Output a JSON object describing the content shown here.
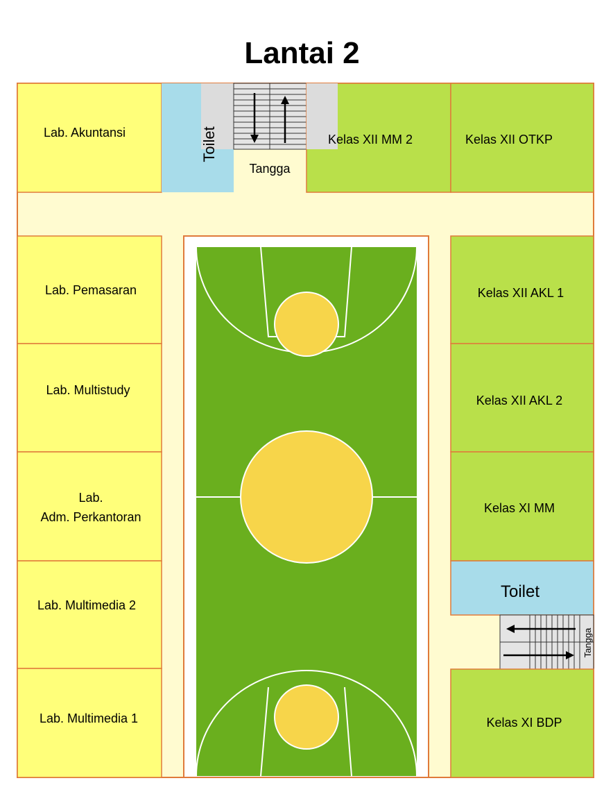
{
  "title": "Lantai 2",
  "colors": {
    "lab": "#ffff7a",
    "kelas": "#b9e04a",
    "corridor": "#fffbd0",
    "toilet": "#a8dcea",
    "court": "#6aaf1e",
    "court_circle": "#f7d54a",
    "wall": "#e07a3a"
  },
  "rooms": {
    "lab_akuntansi": "Lab. Akuntansi",
    "toilet_top": "Toilet",
    "tangga_top": "Tangga",
    "kelas_xii_mm2": "Kelas XII MM 2",
    "kelas_xii_otkp": "Kelas XII OTKP",
    "lab_pemasaran": "Lab. Pemasaran",
    "lab_multistudy": "Lab. Multistudy",
    "lab_adm_line1": "Lab.",
    "lab_adm_line2": "Adm. Perkantoran",
    "lab_multimedia_2": "Lab. Multimedia 2",
    "lab_multimedia_1": "Lab. Multimedia 1",
    "kelas_xii_akl1": "Kelas XII AKL 1",
    "kelas_xii_akl2": "Kelas XII AKL 2",
    "kelas_xi_mm": "Kelas XI MM",
    "toilet_right": "Toilet",
    "tangga_right": "Tangga",
    "kelas_xi_bdp": "Kelas XI BDP"
  }
}
